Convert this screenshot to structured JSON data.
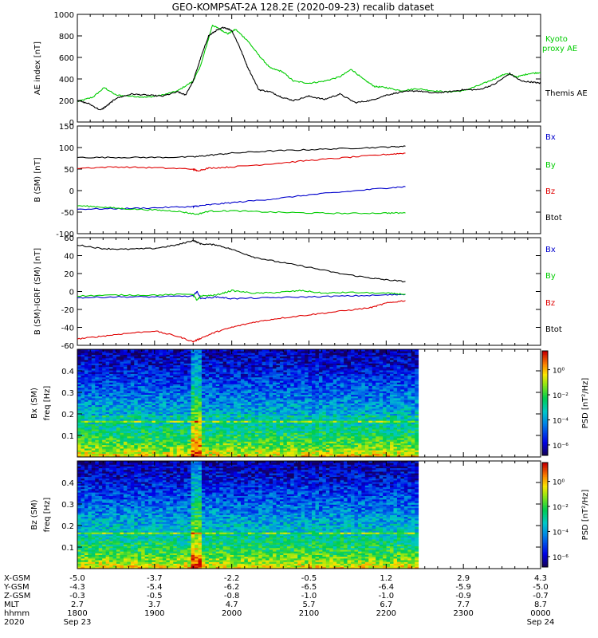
{
  "title": "GEO-KOMPSAT-2A 128.2E (2020-09-23) recalib dataset",
  "colors": {
    "black": "#000000",
    "red": "#e00000",
    "green": "#00cc00",
    "blue": "#0000cc"
  },
  "chart_data": [
    {
      "type": "line",
      "panel": "ae",
      "ylabel": "AE index [nT]",
      "ylim": [
        0,
        1000
      ],
      "yticks": [
        "0",
        "200",
        "400",
        "600",
        "800",
        "1000"
      ],
      "xlim": [
        "18:00",
        "24:00"
      ],
      "legend": [
        {
          "name": "Kyoto proxy AE",
          "color": "green"
        },
        {
          "name": "Themis AE",
          "color": "black"
        }
      ],
      "series": [
        {
          "name": "Kyoto proxy AE",
          "color": "green",
          "x": [
            18.0,
            18.2,
            18.35,
            18.5,
            18.7,
            18.9,
            19.1,
            19.3,
            19.5,
            19.6,
            19.75,
            19.85,
            19.95,
            20.05,
            20.2,
            20.35,
            20.5,
            20.65,
            20.8,
            21.0,
            21.2,
            21.4,
            21.55,
            21.7,
            21.85,
            22.0,
            22.2,
            22.4,
            22.6,
            22.8,
            23.0,
            23.2,
            23.4,
            23.55,
            23.7,
            23.85,
            24.0
          ],
          "y": [
            190,
            230,
            320,
            250,
            240,
            230,
            250,
            290,
            380,
            530,
            900,
            860,
            820,
            860,
            760,
            620,
            500,
            470,
            380,
            360,
            380,
            420,
            490,
            400,
            330,
            320,
            290,
            310,
            290,
            280,
            290,
            340,
            400,
            450,
            420,
            450,
            460
          ]
        },
        {
          "name": "Themis AE",
          "color": "black",
          "x": [
            18.0,
            18.15,
            18.3,
            18.4,
            18.5,
            18.7,
            18.9,
            19.1,
            19.3,
            19.4,
            19.5,
            19.6,
            19.7,
            19.8,
            19.9,
            20.0,
            20.1,
            20.2,
            20.35,
            20.5,
            20.65,
            20.8,
            21.0,
            21.2,
            21.4,
            21.6,
            21.8,
            22.0,
            22.2,
            22.4,
            22.6,
            22.8,
            23.0,
            23.2,
            23.4,
            23.6,
            23.75,
            23.9,
            24.0
          ],
          "y": [
            200,
            170,
            110,
            160,
            220,
            260,
            250,
            240,
            280,
            250,
            380,
            600,
            800,
            850,
            880,
            850,
            700,
            520,
            300,
            280,
            230,
            200,
            240,
            210,
            260,
            180,
            200,
            250,
            280,
            290,
            270,
            280,
            300,
            300,
            350,
            450,
            380,
            370,
            360
          ]
        }
      ]
    },
    {
      "type": "line",
      "panel": "b_sm",
      "ylabel": "B (SM) [nT]",
      "ylim": [
        -100,
        150
      ],
      "yticks": [
        "-100",
        "-50",
        "0",
        "50",
        "100",
        "150"
      ],
      "legend": [
        {
          "name": "Bx",
          "color": "blue"
        },
        {
          "name": "By",
          "color": "green"
        },
        {
          "name": "Bz",
          "color": "red"
        },
        {
          "name": "Btot",
          "color": "black"
        }
      ],
      "series": [
        {
          "name": "Btot",
          "color": "black",
          "x": [
            18.0,
            18.5,
            19.0,
            19.5,
            19.7,
            20.0,
            20.5,
            21.0,
            21.5,
            22.0,
            22.25
          ],
          "y": [
            77,
            77,
            77,
            78,
            82,
            87,
            92,
            95,
            98,
            101,
            103
          ]
        },
        {
          "name": "Bz",
          "color": "red",
          "x": [
            18.0,
            18.5,
            19.0,
            19.5,
            19.55,
            19.7,
            20.0,
            20.5,
            21.0,
            21.5,
            22.0,
            22.25
          ],
          "y": [
            52,
            55,
            53,
            50,
            46,
            52,
            55,
            62,
            70,
            77,
            84,
            87
          ]
        },
        {
          "name": "Bx",
          "color": "blue",
          "x": [
            18.0,
            18.5,
            19.0,
            19.5,
            19.55,
            19.7,
            20.0,
            20.5,
            21.0,
            21.5,
            22.0,
            22.25
          ],
          "y": [
            -43,
            -42,
            -40,
            -37,
            -36,
            -33,
            -28,
            -20,
            -10,
            -2,
            6,
            9
          ]
        },
        {
          "name": "By",
          "color": "green",
          "x": [
            18.0,
            18.3,
            18.6,
            19.0,
            19.3,
            19.55,
            19.7,
            20.0,
            20.5,
            21.0,
            21.5,
            22.0,
            22.25
          ],
          "y": [
            -35,
            -38,
            -42,
            -45,
            -48,
            -55,
            -48,
            -47,
            -50,
            -52,
            -53,
            -52,
            -52
          ]
        }
      ]
    },
    {
      "type": "line",
      "panel": "b_igrf",
      "ylabel": "B (SM)-IGRF (SM) [nT]",
      "ylim": [
        -60,
        60
      ],
      "yticks": [
        "-60",
        "-40",
        "-20",
        "0",
        "20",
        "40",
        "60"
      ],
      "legend": [
        {
          "name": "Bx",
          "color": "blue"
        },
        {
          "name": "By",
          "color": "green"
        },
        {
          "name": "Bz",
          "color": "red"
        },
        {
          "name": "Btot",
          "color": "black"
        }
      ],
      "series": [
        {
          "name": "Btot",
          "color": "black",
          "x": [
            18.0,
            18.3,
            18.6,
            19.0,
            19.3,
            19.5,
            19.6,
            19.8,
            20.0,
            20.3,
            20.6,
            21.0,
            21.4,
            21.8,
            22.0,
            22.25
          ],
          "y": [
            52,
            48,
            47,
            48,
            52,
            57,
            53,
            52,
            47,
            38,
            33,
            27,
            20,
            15,
            13,
            11
          ]
        },
        {
          "name": "Bz",
          "color": "red",
          "x": [
            18.0,
            18.3,
            18.6,
            19.0,
            19.3,
            19.5,
            19.6,
            19.8,
            20.0,
            20.3,
            20.6,
            21.0,
            21.4,
            21.8,
            22.0,
            22.25
          ],
          "y": [
            -53,
            -50,
            -47,
            -44,
            -50,
            -56,
            -52,
            -45,
            -40,
            -34,
            -30,
            -26,
            -22,
            -18,
            -13,
            -10
          ]
        },
        {
          "name": "Bx",
          "color": "blue",
          "x": [
            18.0,
            18.5,
            19.0,
            19.5,
            19.55,
            19.6,
            19.8,
            20.0,
            20.5,
            21.0,
            21.5,
            22.0,
            22.25
          ],
          "y": [
            -7,
            -6,
            -6,
            -5,
            0,
            -8,
            -6,
            -8,
            -7,
            -6,
            -5,
            -4,
            -3
          ]
        },
        {
          "name": "By",
          "color": "green",
          "x": [
            18.0,
            18.5,
            19.0,
            19.5,
            19.55,
            19.6,
            19.8,
            20.0,
            20.3,
            20.6,
            20.9,
            21.2,
            21.5,
            22.0,
            22.25
          ],
          "y": [
            -5,
            -4,
            -4,
            -3,
            -10,
            -5,
            -4,
            1,
            -2,
            -1,
            1,
            -2,
            -1,
            -2,
            -3
          ]
        }
      ]
    },
    {
      "type": "heatmap",
      "panel": "bx_psd",
      "ylabel": "Bx (SM) freq [Hz]",
      "ylim": [
        0,
        0.5
      ],
      "yticks": [
        "0.1",
        "0.2",
        "0.3",
        "0.4"
      ],
      "colorbar_label": "PSD [nT²/Hz]",
      "colorbar_ticks": [
        "10⁰",
        "10⁻²",
        "10⁻⁴",
        "10⁻⁶"
      ],
      "xlim_data": [
        "18:00",
        "22:25"
      ]
    },
    {
      "type": "heatmap",
      "panel": "bz_psd",
      "ylabel": "Bz (SM) freq [Hz]",
      "ylim": [
        0,
        0.5
      ],
      "yticks": [
        "0.1",
        "0.2",
        "0.3",
        "0.4"
      ],
      "colorbar_label": "PSD [nT²/Hz]",
      "colorbar_ticks": [
        "10⁰",
        "10⁻²",
        "10⁻⁴",
        "10⁻⁶"
      ],
      "xlim_data": [
        "18:00",
        "22:25"
      ]
    }
  ],
  "footer": {
    "row_labels": [
      "X-GSM",
      "Y-GSM",
      "Z-GSM",
      "MLT",
      "hhmm",
      "2020"
    ],
    "columns": [
      [
        "-5.0",
        "-4.3",
        "-0.3",
        "2.7",
        "1800",
        "Sep 23"
      ],
      [
        "-3.7",
        "-5.4",
        "-0.5",
        "3.7",
        "1900",
        ""
      ],
      [
        "-2.2",
        "-6.2",
        "-0.8",
        "4.7",
        "2000",
        ""
      ],
      [
        "-0.5",
        "-6.5",
        "-1.0",
        "5.7",
        "2100",
        ""
      ],
      [
        "1.2",
        "-6.4",
        "-1.0",
        "6.7",
        "2200",
        ""
      ],
      [
        "2.9",
        "-5.9",
        "-0.9",
        "7.7",
        "2300",
        ""
      ],
      [
        "4.3",
        "-5.0",
        "-0.7",
        "8.7",
        "0000",
        "Sep 24"
      ]
    ]
  }
}
